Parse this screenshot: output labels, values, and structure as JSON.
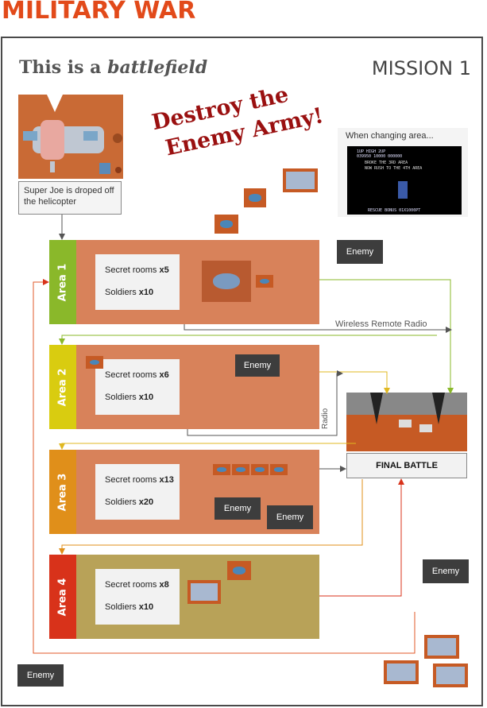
{
  "title": "MILITARY WAR",
  "heading": {
    "prefix": "This is a ",
    "emph": "battlefield"
  },
  "mission": "MISSION 1",
  "slogan": {
    "line1": "Destroy the",
    "line2": "Enemy Army!"
  },
  "caption": "Super Joe is droped off the helicopter",
  "change_area": {
    "label": "When changing area...",
    "screen_lines": [
      "1UP      HIGH      2UP",
      "039950   10000     000000",
      "BROKE THE 3RD AREA",
      "NOW RUSH TO THE 4TH AREA",
      "RESCUE BONUS 01X1000PT"
    ]
  },
  "areas": [
    {
      "label": "Area 1",
      "secret_label": "Secret rooms ",
      "secret": "x5",
      "soldiers_label": "Soldiers ",
      "soldiers": "x10",
      "color": "#8ab82a"
    },
    {
      "label": "Area 2",
      "secret_label": "Secret rooms ",
      "secret": "x6",
      "soldiers_label": "Soldiers ",
      "soldiers": "x10",
      "color": "#d9cc10"
    },
    {
      "label": "Area 3",
      "secret_label": "Secret rooms ",
      "secret": "x13",
      "soldiers_label": "Soldiers ",
      "soldiers": "x20",
      "color": "#e08f1a"
    },
    {
      "label": "Area 4",
      "secret_label": "Secret rooms ",
      "secret": "x8",
      "soldiers_label": "Soldiers ",
      "soldiers": "x10",
      "color": "#d8321a"
    }
  ],
  "enemy_label": "Enemy",
  "wireless_label": "Wireless Remote Radio",
  "radio_label": "Radio",
  "final_battle": "FINAL BATTLE",
  "colors": {
    "title": "#e24a1a",
    "slogan": "#9a1010",
    "dirt": "#d8825a",
    "sand": "#b8a258",
    "enemy_box": "#3d3d3d",
    "arrow_green": "#8ab82a",
    "arrow_yellow": "#d9cc10",
    "arrow_orange": "#e08f1a",
    "arrow_red": "#d8321a",
    "arrow_grey": "#555555"
  }
}
